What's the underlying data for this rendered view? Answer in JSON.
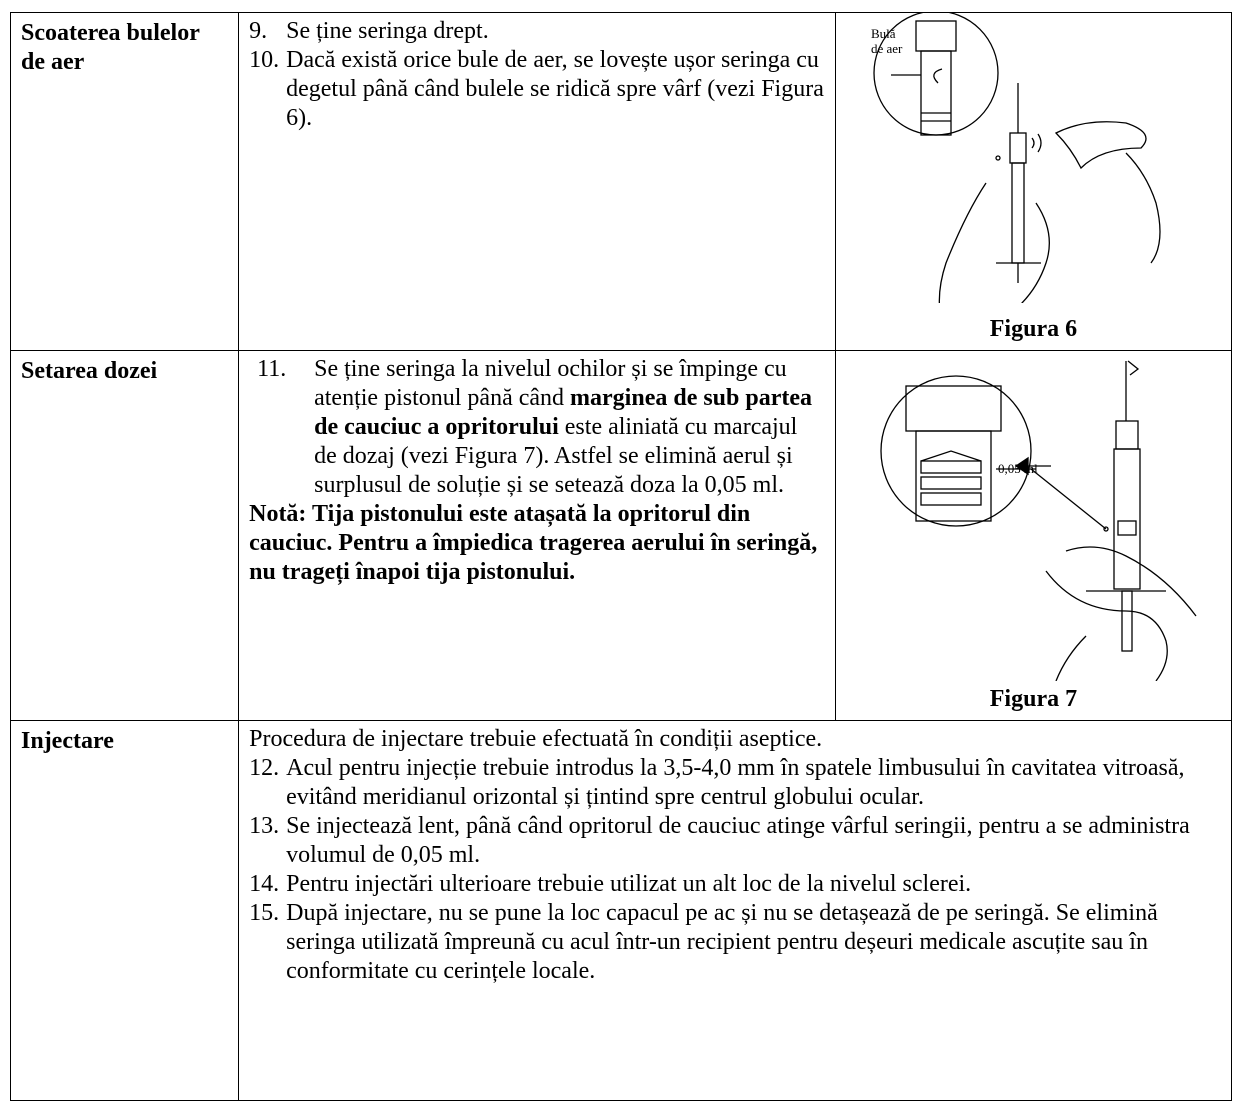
{
  "rows": [
    {
      "heading": "Scoaterea bulelor de aer",
      "steps": [
        {
          "number": "9.",
          "parts": [
            {
              "text": "Se ține seringa drept."
            }
          ]
        },
        {
          "number": "10.",
          "parts": [
            {
              "text": "Dacă există orice bule de aer, se lovește ușor seringa cu degetul până când bulele se ridică spre vârf (vezi Figura 6)."
            }
          ]
        }
      ],
      "figure": {
        "labels": [
          "Bulă",
          "de aer"
        ],
        "caption": "Figura 6"
      }
    },
    {
      "heading": "Setarea dozei",
      "steps": [
        {
          "number": "11.",
          "parts": [
            {
              "text": "Se ține seringa la nivelul ochilor și se împinge cu atenție pistonul până când"
            },
            {
              "text": "marginea de sub partea de cauciuc a opritorului",
              "bold": true
            },
            {
              "text": "este aliniată cu marcajul de dozaj (vezi Figura 7). Astfel se elimină aerul și surplusul de soluție și se setează doza la 0,05 ml."
            }
          ]
        }
      ],
      "note": "Notă: Tija pistonului este atașată la opritorul din cauciuc. Pentru a împiedica tragerea aerului în seringă, nu trageți înapoi tija pistonului.",
      "figure": {
        "labels": [
          "0,05 ml"
        ],
        "caption": "Figura 7"
      }
    },
    {
      "heading": "Injectare",
      "intro": "Procedura de injectare trebuie efectuată în condiții aseptice.",
      "steps": [
        {
          "number": "12.",
          "parts": [
            {
              "text": "Acul pentru injecție trebuie introdus la 3,5-4,0 mm în spatele limbusului în cavitatea vitroasă, evitând meridianul orizontal și țintind spre centrul globului ocular."
            }
          ]
        },
        {
          "number": "13.",
          "parts": [
            {
              "text": "Se injectează lent, până când opritorul de cauciuc atinge vârful seringii, pentru a se administra volumul de 0,05 ml."
            }
          ]
        },
        {
          "number": "14.",
          "parts": [
            {
              "text": "Pentru injectări ulterioare trebuie utilizat un alt loc de la nivelul sclerei."
            }
          ]
        },
        {
          "number": "15.",
          "parts": [
            {
              "text": "După injectare, nu se pune la loc capacul pe ac și nu se detașează de pe seringă. Se elimină seringa utilizată împreună cu acul într-un recipient pentru deșeuri medicale ascuțite sau în conformitate cu cerințele locale."
            }
          ]
        }
      ]
    }
  ]
}
